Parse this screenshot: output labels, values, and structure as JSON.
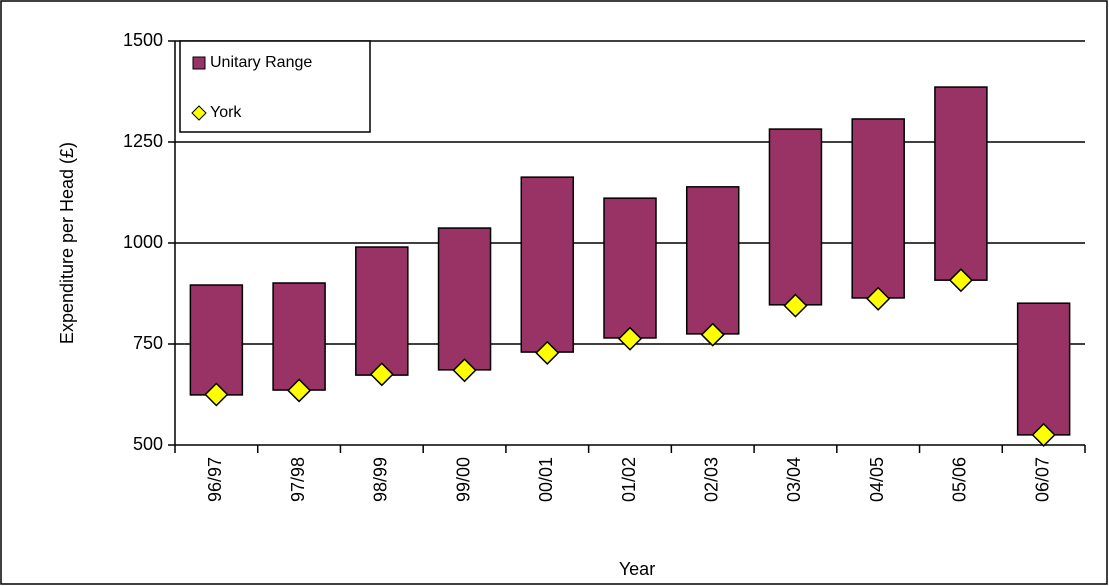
{
  "chart_data": {
    "type": "range_bar",
    "x_label": "Year",
    "y_label": "Expenditure per Head (£)",
    "categories": [
      "96/97",
      "97/98",
      "98/99",
      "99/00",
      "00/01",
      "01/02",
      "02/03",
      "03/04",
      "04/05",
      "05/06",
      "06/07"
    ],
    "series": [
      {
        "name": "Unitary Range",
        "color": "#993366",
        "low": [
          624,
          636,
          673,
          686,
          730,
          765,
          775,
          847,
          864,
          908,
          525
        ],
        "high": [
          896,
          901,
          990,
          1037,
          1163,
          1111,
          1139,
          1282,
          1307,
          1386,
          851
        ]
      },
      {
        "name": "York",
        "color": "#ffff00",
        "values": [
          625,
          635,
          675,
          685,
          728,
          763,
          773,
          845,
          862,
          908,
          525
        ]
      }
    ],
    "ylim": [
      500,
      1500
    ],
    "yticks": [
      500,
      750,
      1000,
      1250,
      1500
    ],
    "grid": true,
    "legend": "upper left"
  }
}
